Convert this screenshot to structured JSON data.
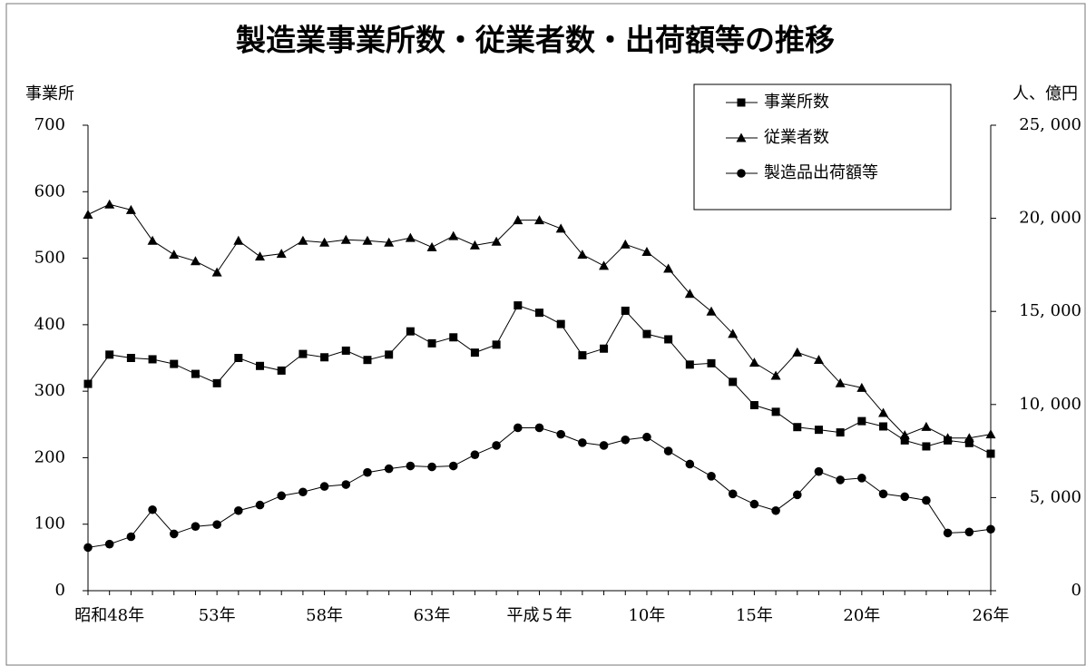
{
  "chart_data": {
    "type": "line",
    "title": "製造業事業所数・従業者数・出荷額等の推移",
    "y_label": "事業所",
    "y2_label": "人、億円",
    "categories": [
      null,
      "昭和48年",
      null,
      null,
      null,
      null,
      "53年",
      null,
      null,
      null,
      null,
      "58年",
      null,
      null,
      null,
      null,
      "63年",
      null,
      null,
      null,
      null,
      "平成５年",
      null,
      null,
      null,
      null,
      "10年",
      null,
      null,
      null,
      null,
      "15年",
      null,
      null,
      null,
      null,
      "20年",
      null,
      null,
      null,
      null,
      null,
      "26年"
    ],
    "ylim": [
      0,
      700
    ],
    "yticks": [
      0,
      100,
      200,
      300,
      400,
      500,
      600,
      700
    ],
    "y2lim": [
      0,
      25000
    ],
    "y2ticks": [
      0,
      {
        "value": 5000,
        "label": "5, 000"
      },
      {
        "value": 10000,
        "label": "10, 000"
      },
      {
        "value": 15000,
        "label": "15, 000"
      },
      {
        "value": 20000,
        "label": "20, 000"
      },
      {
        "value": 25000,
        "label": "25, 000"
      }
    ],
    "grid": false,
    "legend": "upper right",
    "series": [
      {
        "name": "事業所数",
        "color": "#000000",
        "marker": "square",
        "values": [
          311,
          355,
          350,
          348,
          341,
          326,
          312,
          350,
          338,
          331,
          356,
          351,
          361,
          347,
          355,
          390,
          372,
          381,
          358,
          370,
          429,
          418,
          401,
          354,
          364,
          421,
          386,
          378,
          340,
          342,
          314,
          279,
          269,
          246,
          242,
          238,
          255,
          247,
          226,
          217,
          226,
          222,
          206
        ]
      },
      {
        "name": "従業者数",
        "color": "#000000",
        "marker": "triangle",
        "axis": "y2",
        "values": [
          20200,
          20750,
          20450,
          18800,
          18050,
          17700,
          17100,
          18800,
          17950,
          18100,
          18800,
          18700,
          18850,
          18800,
          18700,
          18950,
          18450,
          19050,
          18550,
          18750,
          19900,
          19900,
          19450,
          18050,
          17450,
          18600,
          18200,
          17300,
          15950,
          15000,
          13800,
          12250,
          11550,
          12800,
          12400,
          11150,
          10900,
          9550,
          8350,
          8800,
          8200,
          8200,
          8400
        ]
      },
      {
        "name": "製造品出荷額等",
        "color": "#000000",
        "marker": "circle",
        "axis": "y2",
        "values": [
          2320,
          2500,
          2900,
          4350,
          3050,
          3450,
          3550,
          4300,
          4600,
          5100,
          5300,
          5600,
          5700,
          6350,
          6550,
          6700,
          6650,
          6700,
          7300,
          7800,
          8750,
          8750,
          8400,
          7950,
          7800,
          8100,
          8250,
          7500,
          6800,
          6150,
          5200,
          4650,
          4300,
          5150,
          6400,
          5950,
          6050,
          5200,
          5050,
          4850,
          3100,
          3150,
          3300
        ]
      }
    ]
  }
}
